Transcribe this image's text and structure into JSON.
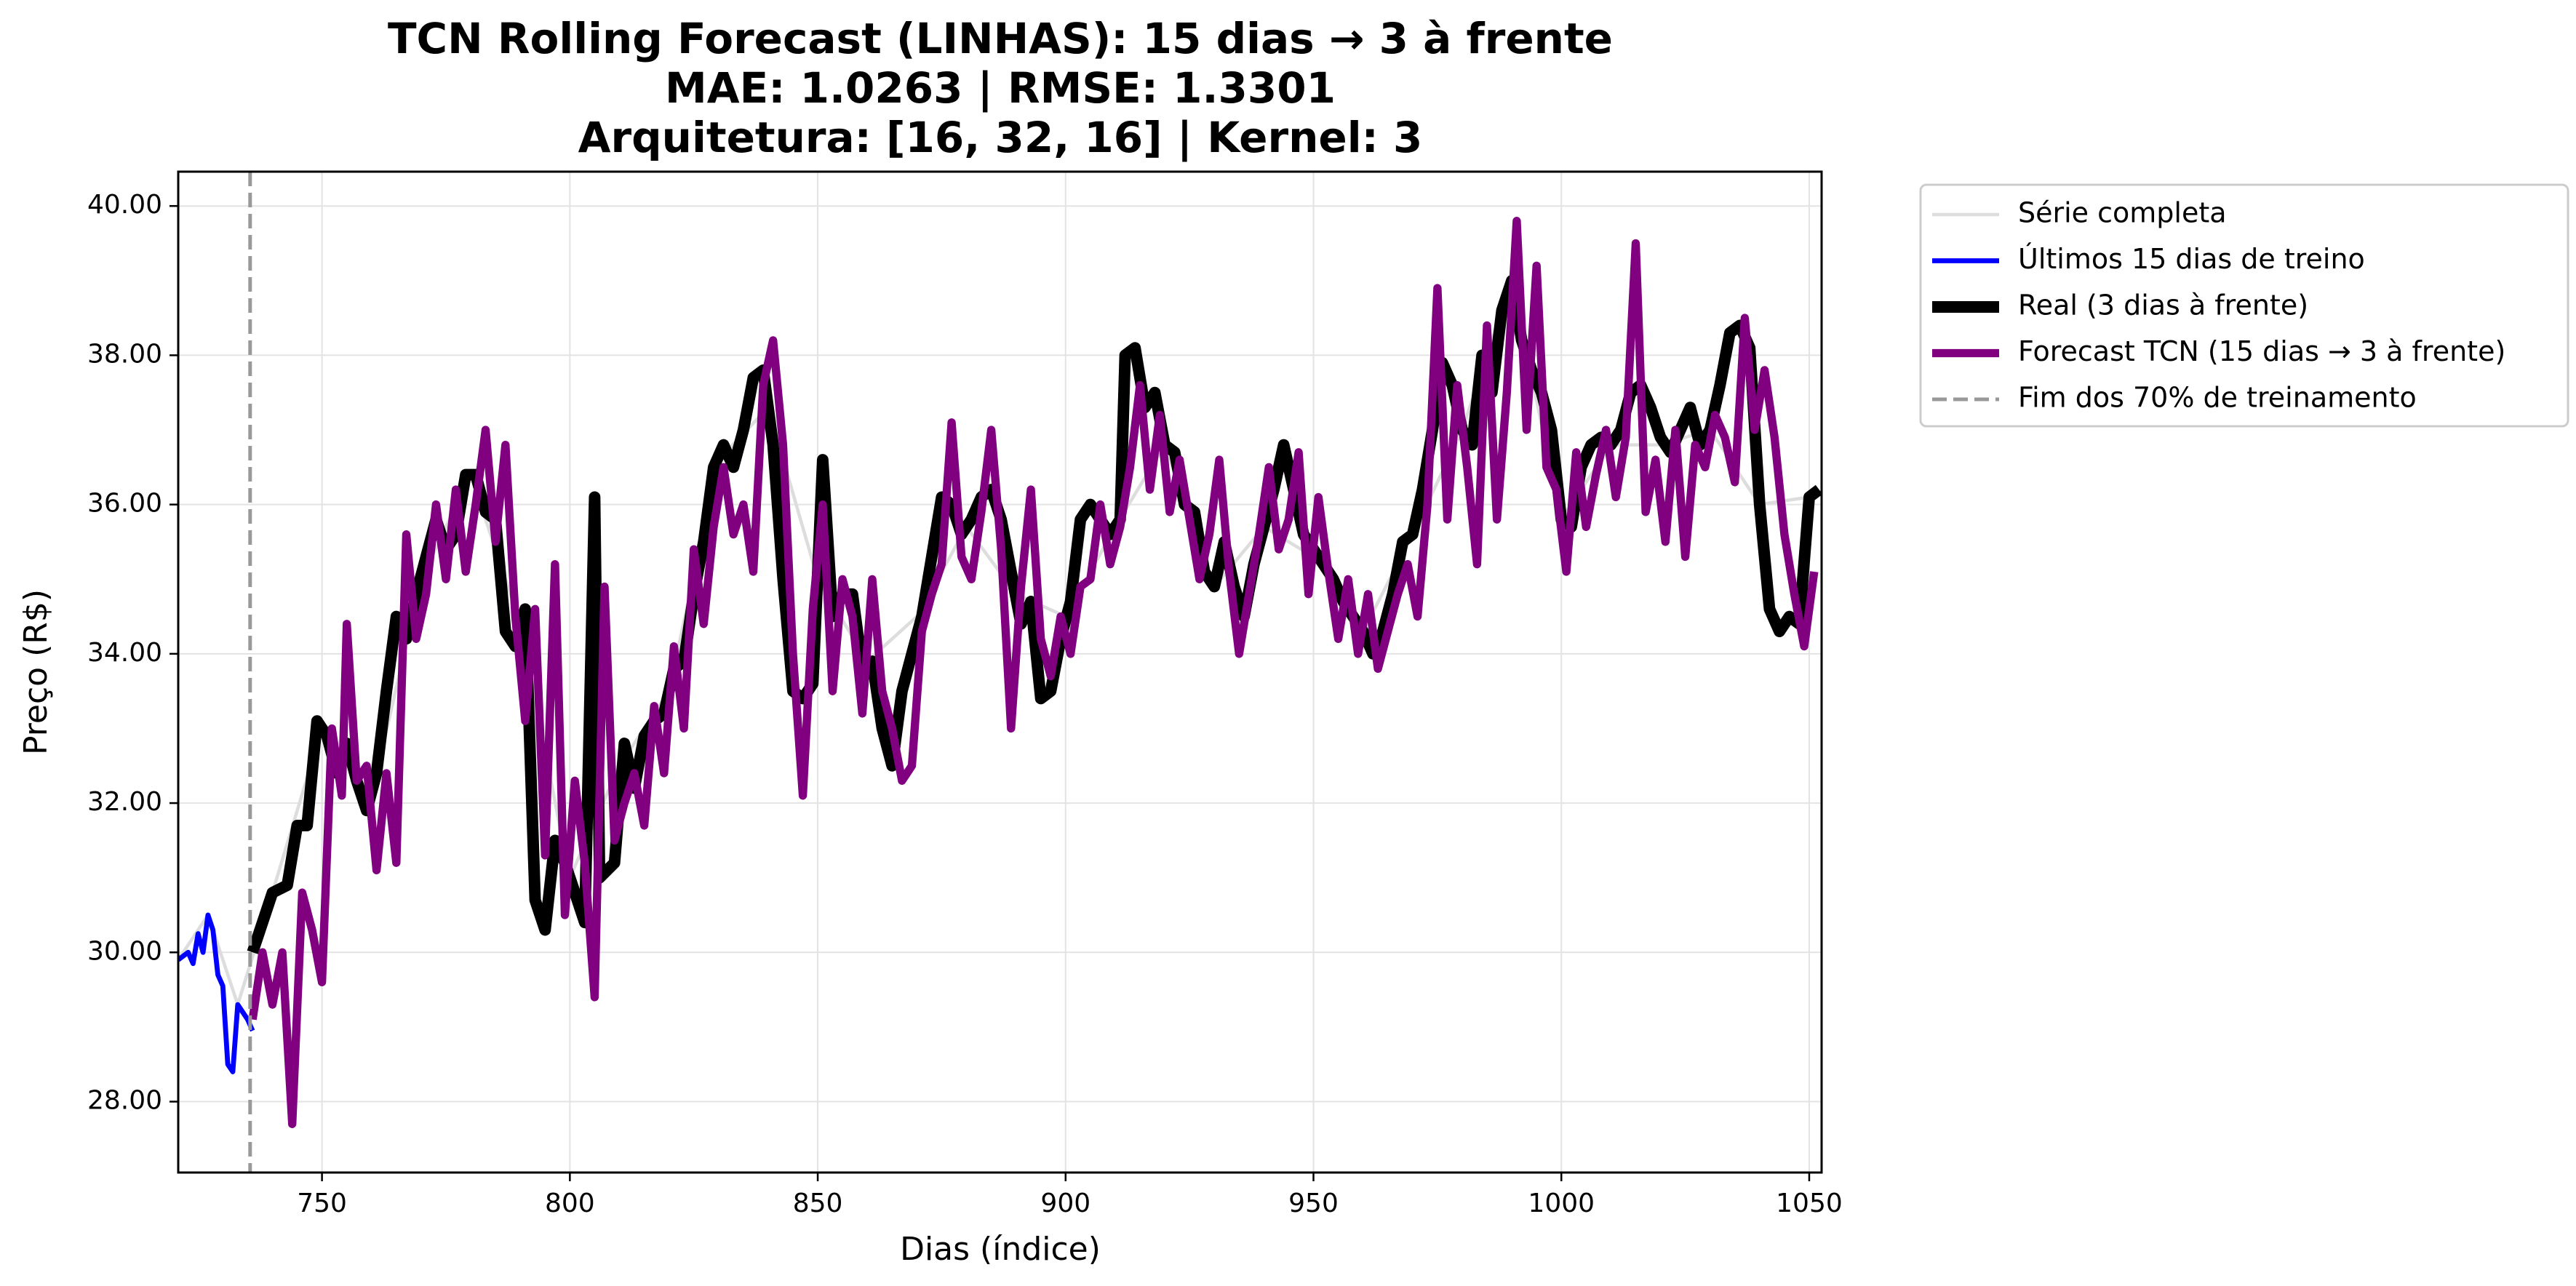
{
  "chart_data": {
    "type": "line",
    "title": [
      "TCN Rolling Forecast (LINHAS): 15 dias → 3 à frente",
      "MAE: 1.0263 | RMSE: 1.3301",
      "Arquitetura: [16, 32, 16] | Kernel: 3"
    ],
    "xlabel": "Dias (índice)",
    "ylabel": "Preço (R$)",
    "xlim": [
      721,
      1052.5
    ],
    "ylim": [
      27.05,
      40.46
    ],
    "xticks": [
      750,
      800,
      850,
      900,
      950,
      1000,
      1050
    ],
    "yticks": [
      {
        "value": 28,
        "label": "28.00"
      },
      {
        "value": 30,
        "label": "30.00"
      },
      {
        "value": 32,
        "label": "32.00"
      },
      {
        "value": 34,
        "label": "34.00"
      },
      {
        "value": 36,
        "label": "36.00"
      },
      {
        "value": 38,
        "label": "38.00"
      },
      {
        "value": 40,
        "label": "40.00"
      }
    ],
    "grid": true,
    "legend": "outside-upper-right",
    "vline": {
      "x": 735.5,
      "label": "Fim dos 70% de treinamento",
      "color": "#999999"
    },
    "series": [
      {
        "name": "Série completa",
        "color": "#dddddd",
        "width": 2,
        "x": [
          721,
          727,
          733,
          740,
          750,
          760,
          770,
          780,
          790,
          800,
          810,
          820,
          830,
          840,
          850,
          860,
          870,
          880,
          890,
          900,
          910,
          920,
          930,
          940,
          950,
          960,
          970,
          980,
          990,
          1000,
          1010,
          1020,
          1030,
          1040,
          1050
        ],
        "values": [
          29.9,
          30.5,
          29.3,
          30.8,
          33.0,
          32.1,
          35.0,
          36.4,
          34.4,
          31.0,
          32.5,
          33.5,
          36.6,
          37.3,
          35.0,
          33.9,
          34.5,
          35.7,
          34.8,
          34.5,
          35.7,
          36.8,
          34.9,
          35.7,
          35.3,
          34.3,
          35.6,
          37.0,
          39.0,
          35.8,
          36.8,
          36.8,
          37.0,
          36.0,
          36.1
        ]
      },
      {
        "name": "Últimos 15 dias de treino",
        "color": "#0000ff",
        "width": 3,
        "x": [
          721,
          722,
          723,
          724,
          725,
          726,
          727,
          728,
          729,
          730,
          731,
          732,
          733,
          734,
          735,
          736
        ],
        "values": [
          29.9,
          29.95,
          30.0,
          29.85,
          30.25,
          30.0,
          30.5,
          30.3,
          29.7,
          29.55,
          28.5,
          28.4,
          29.3,
          29.2,
          29.1,
          28.95
        ]
      },
      {
        "name": "Real (3 dias à frente)",
        "color": "#000000",
        "width": 7,
        "x": [
          736,
          740,
          743,
          745,
          747,
          749,
          751,
          753,
          755,
          757,
          759,
          761,
          763,
          765,
          767,
          769,
          771,
          773,
          775,
          777,
          779,
          781,
          783,
          785,
          787,
          789,
          791,
          793,
          795,
          797,
          799,
          801,
          803,
          805,
          806,
          809,
          811,
          813,
          815,
          817,
          819,
          821,
          823,
          825,
          827,
          829,
          831,
          833,
          835,
          837,
          839,
          841,
          843,
          845,
          847,
          849,
          851,
          853,
          855,
          857,
          859,
          861,
          863,
          865,
          867,
          869,
          871,
          873,
          875,
          877,
          879,
          881,
          883,
          885,
          887,
          889,
          891,
          893,
          895,
          897,
          899,
          901,
          903,
          905,
          907,
          909,
          911,
          912,
          914,
          916,
          918,
          920,
          922,
          924,
          926,
          928,
          930,
          932,
          934,
          936,
          938,
          940,
          942,
          944,
          946,
          948,
          950,
          952,
          954,
          956,
          958,
          960,
          962,
          964,
          966,
          968,
          970,
          972,
          974,
          976,
          978,
          980,
          982,
          984,
          986,
          988,
          990,
          992,
          994,
          996,
          998,
          1000,
          1002,
          1004,
          1006,
          1008,
          1010,
          1012,
          1014,
          1016,
          1018,
          1020,
          1022,
          1024,
          1026,
          1028,
          1030,
          1032,
          1034,
          1036,
          1038,
          1040,
          1042,
          1044,
          1046,
          1048,
          1050,
          1052
        ],
        "values": [
          30.0,
          30.8,
          30.9,
          31.7,
          31.7,
          33.1,
          32.9,
          32.4,
          32.8,
          32.3,
          31.9,
          32.4,
          33.5,
          34.5,
          34.2,
          34.8,
          35.3,
          35.8,
          35.4,
          35.6,
          36.4,
          36.4,
          35.9,
          35.8,
          34.3,
          34.1,
          34.6,
          30.7,
          30.3,
          31.5,
          31.2,
          30.8,
          30.4,
          36.1,
          31.0,
          31.2,
          32.8,
          32.2,
          32.9,
          33.1,
          33.2,
          33.8,
          33.9,
          34.8,
          35.5,
          36.5,
          36.8,
          36.5,
          37.0,
          37.7,
          37.8,
          36.8,
          35.0,
          33.5,
          33.4,
          33.6,
          36.6,
          34.5,
          34.8,
          34.8,
          33.8,
          33.9,
          33.0,
          32.5,
          33.5,
          34.0,
          34.5,
          35.3,
          36.1,
          36.0,
          35.6,
          35.8,
          36.1,
          36.2,
          35.8,
          35.1,
          34.4,
          34.7,
          33.4,
          33.5,
          34.2,
          34.7,
          35.8,
          36.0,
          35.8,
          35.6,
          35.8,
          38.0,
          38.1,
          37.3,
          37.5,
          36.8,
          36.7,
          36.0,
          35.9,
          35.1,
          34.9,
          35.5,
          34.9,
          34.5,
          35.2,
          35.7,
          36.2,
          36.8,
          36.2,
          35.6,
          35.4,
          35.2,
          35.0,
          34.7,
          34.5,
          34.3,
          34.0,
          34.3,
          34.8,
          35.5,
          35.6,
          36.2,
          37.0,
          37.9,
          37.6,
          37.0,
          36.8,
          38.0,
          37.5,
          38.6,
          39.0,
          38.2,
          37.8,
          37.5,
          37.0,
          35.8,
          35.7,
          36.5,
          36.8,
          36.9,
          36.8,
          37.0,
          37.5,
          37.6,
          37.3,
          36.9,
          36.7,
          37.0,
          37.3,
          36.8,
          37.0,
          37.6,
          38.3,
          38.4,
          38.1,
          36.0,
          34.6,
          34.3,
          34.5,
          34.4,
          36.1,
          36.2
        ]
      },
      {
        "name": "Forecast TCN (15 dias → 3 à frente)",
        "color": "#800080",
        "width": 5,
        "x": [
          736,
          738,
          740,
          742,
          744,
          746,
          748,
          750,
          752,
          754,
          755,
          757,
          759,
          761,
          763,
          765,
          767,
          769,
          771,
          773,
          775,
          777,
          779,
          781,
          783,
          785,
          787,
          789,
          791,
          793,
          795,
          797,
          799,
          801,
          803,
          805,
          807,
          809,
          811,
          813,
          815,
          817,
          819,
          821,
          823,
          825,
          827,
          829,
          831,
          833,
          835,
          837,
          839,
          841,
          843,
          845,
          847,
          849,
          851,
          853,
          855,
          857,
          859,
          861,
          863,
          865,
          867,
          869,
          871,
          873,
          875,
          877,
          879,
          881,
          883,
          885,
          887,
          889,
          891,
          893,
          895,
          897,
          899,
          901,
          903,
          905,
          907,
          909,
          911,
          913,
          915,
          917,
          919,
          921,
          923,
          925,
          927,
          929,
          931,
          933,
          935,
          937,
          939,
          941,
          943,
          945,
          947,
          949,
          951,
          953,
          955,
          957,
          959,
          961,
          963,
          965,
          967,
          969,
          971,
          973,
          975,
          977,
          979,
          981,
          983,
          985,
          987,
          989,
          991,
          993,
          995,
          997,
          999,
          1001,
          1003,
          1005,
          1007,
          1009,
          1011,
          1013,
          1015,
          1017,
          1019,
          1021,
          1023,
          1025,
          1027,
          1029,
          1031,
          1033,
          1035,
          1037,
          1039,
          1041,
          1043,
          1045,
          1047,
          1049,
          1051
        ],
        "values": [
          29.1,
          30.0,
          29.3,
          30.0,
          27.7,
          30.8,
          30.3,
          29.6,
          33.0,
          32.1,
          34.4,
          32.3,
          32.5,
          31.1,
          32.4,
          31.2,
          35.6,
          34.2,
          34.8,
          36.0,
          35.0,
          36.2,
          35.1,
          36.0,
          37.0,
          35.5,
          36.8,
          34.5,
          33.1,
          34.6,
          31.3,
          35.2,
          30.5,
          32.3,
          31.2,
          29.4,
          34.9,
          31.5,
          32.0,
          32.4,
          31.7,
          33.3,
          32.4,
          34.1,
          33.0,
          35.4,
          34.4,
          35.7,
          36.5,
          35.6,
          36.0,
          35.1,
          37.6,
          38.2,
          36.8,
          34.0,
          32.1,
          34.6,
          36.0,
          33.5,
          35.0,
          34.5,
          33.2,
          35.0,
          33.5,
          33.0,
          32.3,
          32.5,
          34.3,
          34.8,
          35.2,
          37.1,
          35.3,
          35.0,
          35.9,
          37.0,
          35.4,
          33.0,
          34.9,
          36.2,
          34.2,
          33.7,
          34.5,
          34.0,
          34.9,
          35.0,
          36.0,
          35.2,
          35.7,
          36.5,
          37.6,
          36.2,
          37.2,
          35.9,
          36.6,
          35.8,
          35.0,
          35.6,
          36.6,
          35.1,
          34.0,
          34.8,
          35.6,
          36.5,
          35.4,
          35.8,
          36.7,
          34.8,
          36.1,
          35.1,
          34.2,
          35.0,
          34.0,
          34.8,
          33.8,
          34.3,
          34.8,
          35.2,
          34.5,
          36.0,
          38.9,
          35.8,
          37.6,
          36.5,
          35.2,
          38.4,
          35.8,
          37.5,
          39.8,
          37.0,
          39.2,
          36.5,
          36.2,
          35.1,
          36.7,
          35.7,
          36.4,
          37.0,
          36.1,
          36.9,
          39.5,
          35.9,
          36.6,
          35.5,
          37.0,
          35.3,
          36.8,
          36.5,
          37.2,
          36.9,
          36.3,
          38.5,
          37.0,
          37.8,
          36.9,
          35.6,
          34.8,
          34.1,
          35.1
        ]
      }
    ]
  }
}
